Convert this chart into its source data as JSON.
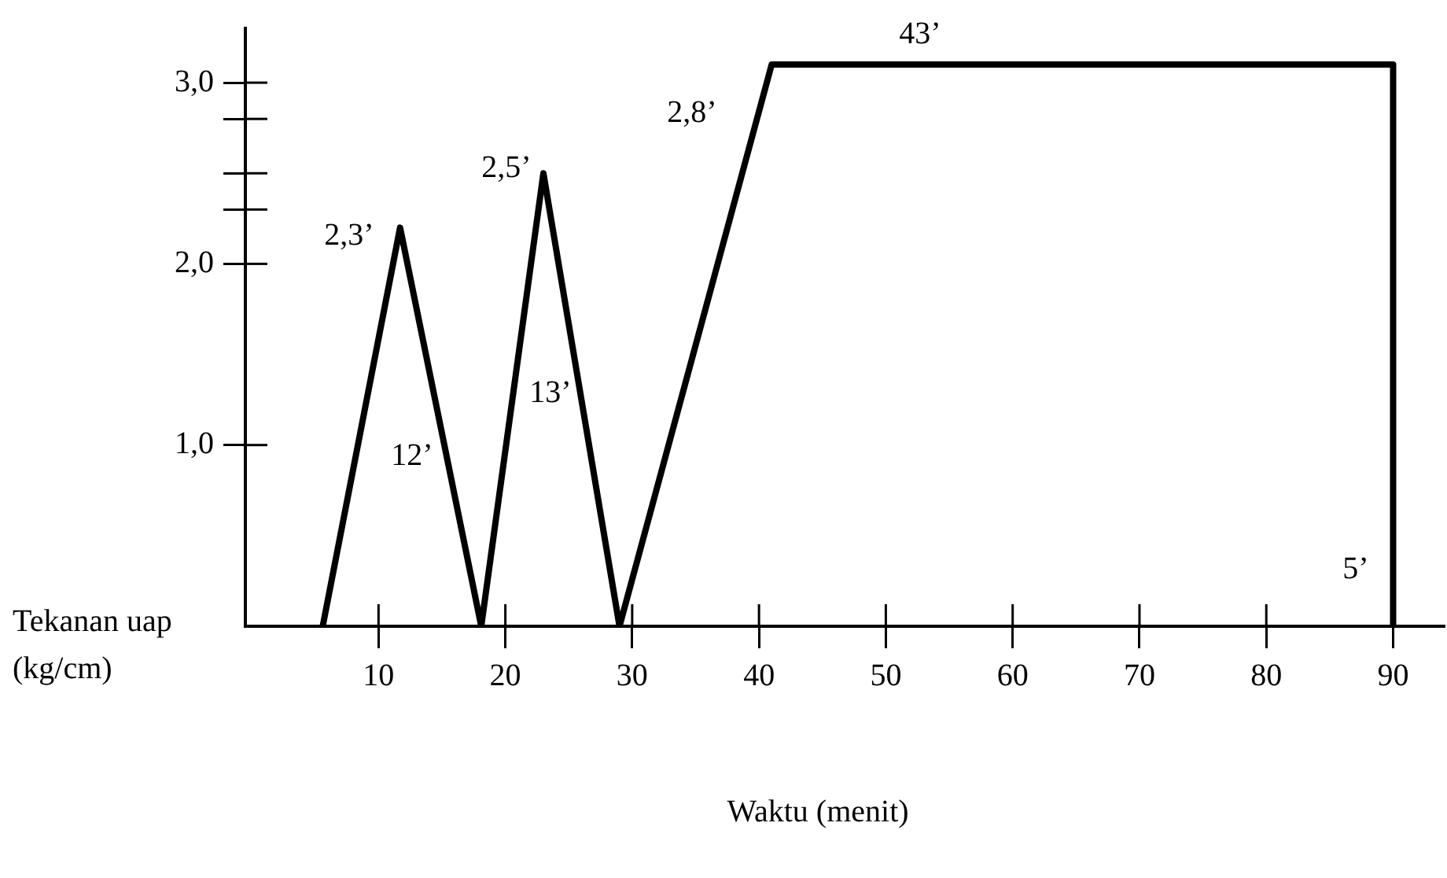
{
  "chart_data": {
    "type": "line",
    "xlabel": "Waktu (menit)",
    "ylabel": "Tekanan uap (kg/cm)",
    "x": [
      5.6,
      11.7,
      18.1,
      23,
      29,
      41,
      90,
      90
    ],
    "series": [
      {
        "color": "#000000",
        "values": [
          0,
          2.2,
          0,
          2.5,
          0,
          3.1,
          3.1,
          0
        ]
      }
    ],
    "xlim": [
      -0.5,
      94
    ],
    "xticks": [
      10,
      20,
      30,
      40,
      50,
      60,
      70,
      80,
      90
    ],
    "ylim": [
      0,
      3.3
    ],
    "yticks": [
      {
        "value": 1,
        "label": "1,0"
      },
      {
        "value": 2,
        "label": "2,0"
      },
      {
        "value": 2.3,
        "label": null
      },
      {
        "value": 2.5,
        "label": null
      },
      {
        "value": 2.8,
        "label": null
      },
      {
        "value": 3,
        "label": "3,0"
      }
    ],
    "grid": false,
    "legend": false,
    "marker": "none",
    "line_style": "solid",
    "annotations": [
      "2,3’",
      "12’",
      "2,5’",
      "13’",
      "2,8’",
      "43’",
      "5’"
    ]
  }
}
